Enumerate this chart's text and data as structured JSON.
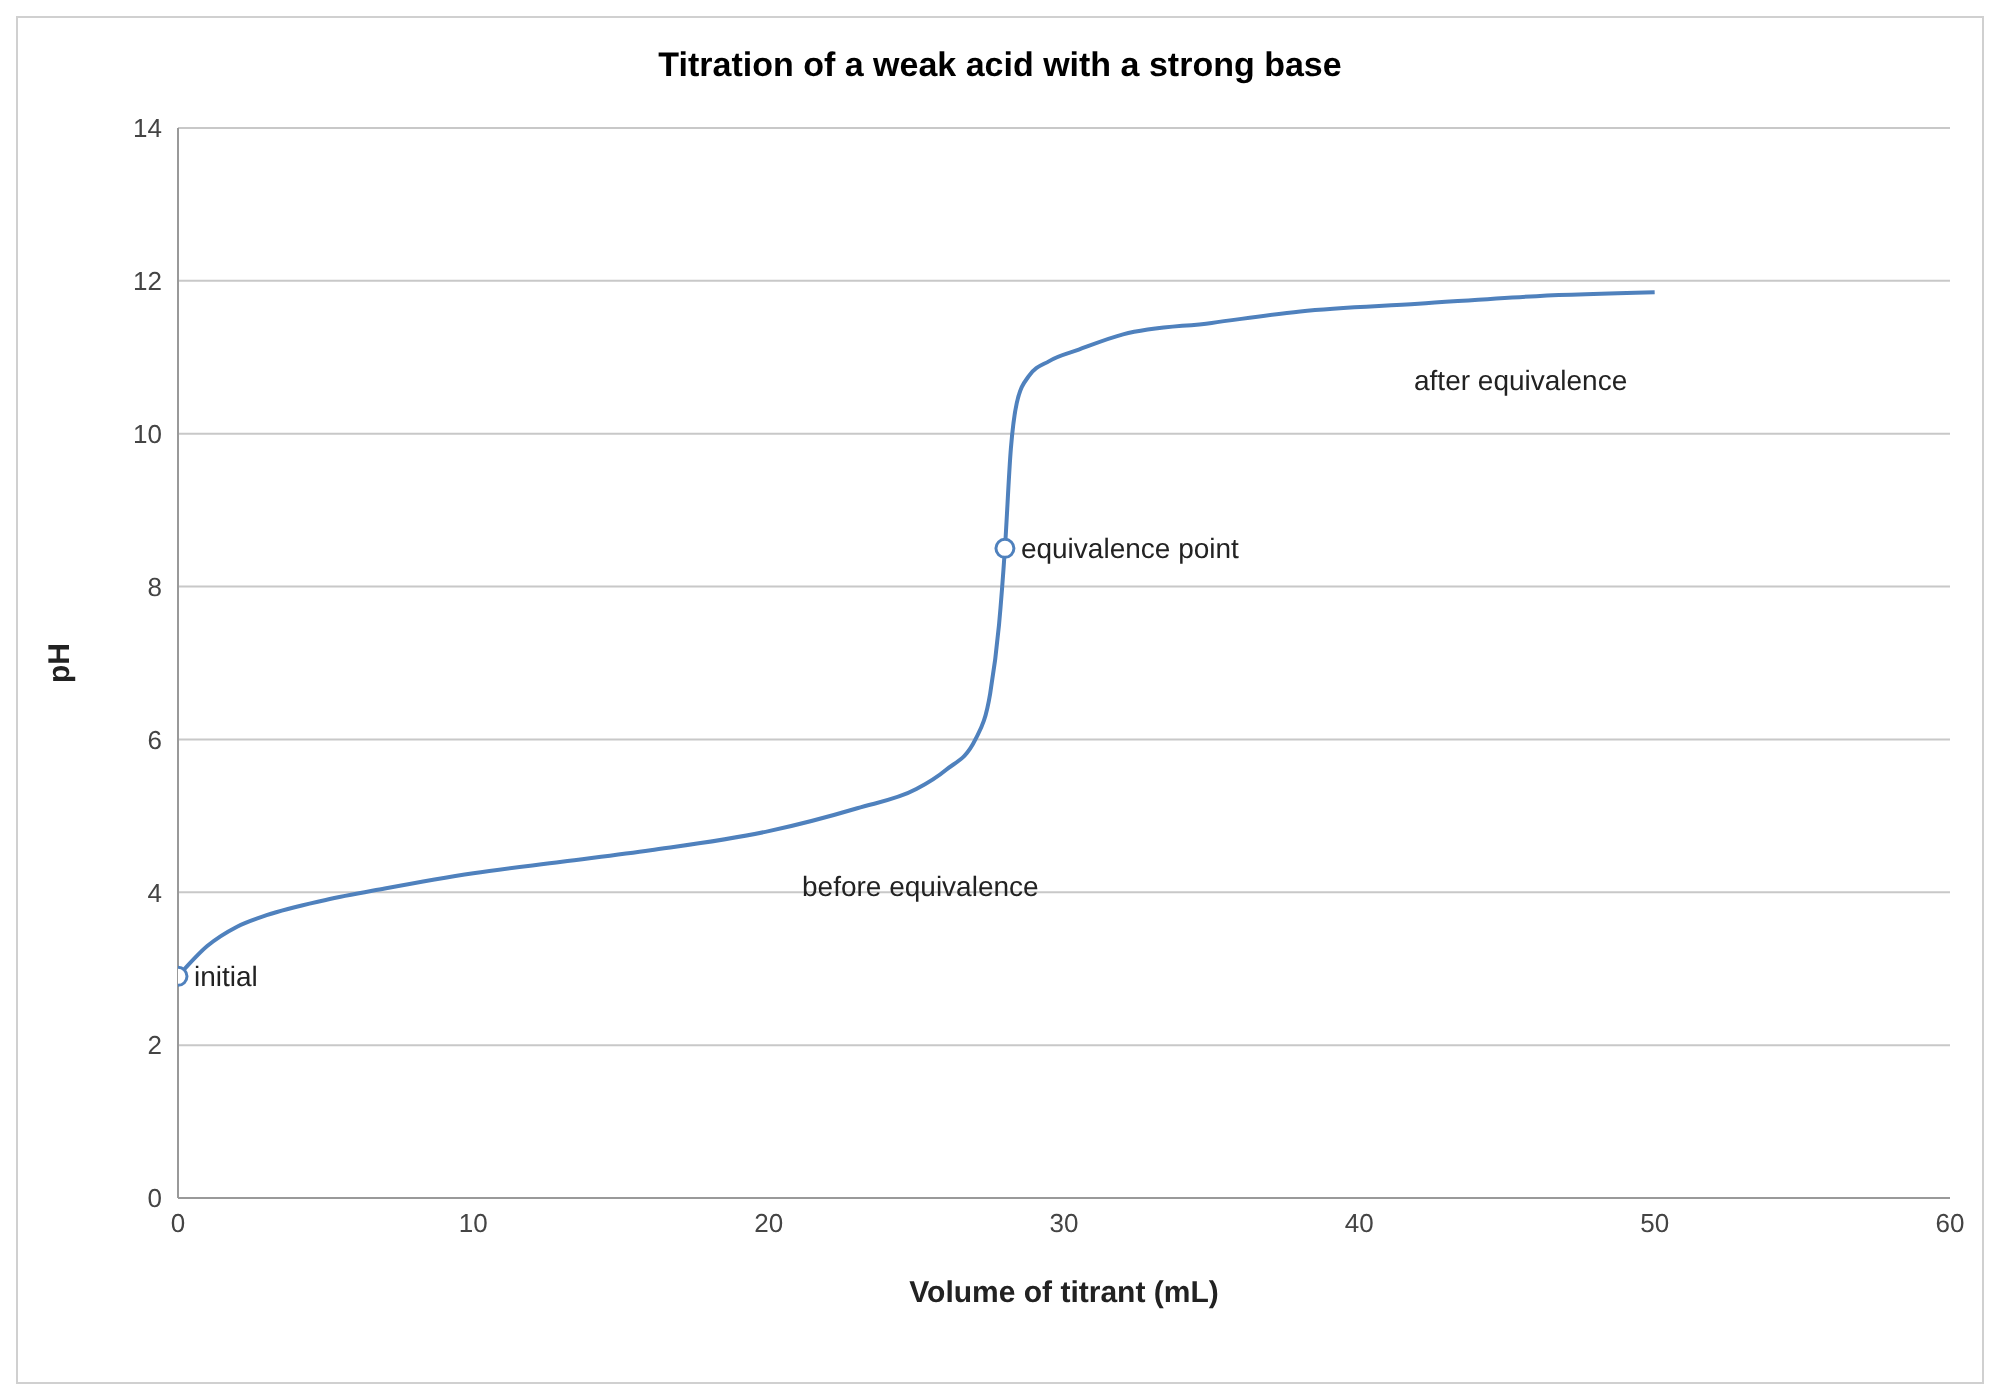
{
  "chart_data": {
    "type": "line",
    "title": "Titration of a weak acid with a strong base",
    "xlabel": "Volume of titrant (mL)",
    "ylabel": "pH",
    "xlim": [
      0,
      60
    ],
    "xticks": [
      0,
      10,
      20,
      30,
      40,
      50,
      60
    ],
    "ylim": [
      0,
      14
    ],
    "yticks": [
      0,
      2,
      4,
      6,
      8,
      10,
      12,
      14
    ],
    "grid": "y",
    "series": [
      {
        "color": "#4f81bd",
        "marker": "none",
        "x": [
          0,
          1,
          2,
          3,
          5,
          7,
          10,
          13,
          16,
          20,
          23,
          25,
          26,
          27,
          27.5,
          27.8,
          28,
          28.2,
          28.4,
          28.8,
          29.5,
          30.5,
          32,
          35,
          38,
          42,
          46,
          50
        ],
        "values": [
          2.9,
          3.3,
          3.55,
          3.7,
          3.9,
          4.05,
          4.25,
          4.4,
          4.55,
          4.8,
          5.1,
          5.35,
          5.6,
          6.0,
          6.6,
          7.5,
          8.5,
          9.8,
          10.4,
          10.75,
          10.95,
          11.1,
          11.3,
          11.45,
          11.6,
          11.7,
          11.8,
          11.85
        ]
      },
      {
        "type": "scatter",
        "color": "#4f81bd",
        "marker": "circle",
        "x": [
          0,
          28
        ],
        "values": [
          2.9,
          8.5
        ]
      }
    ],
    "annotations": [
      {
        "text": "initial",
        "x": 0,
        "y": 2.9
      },
      {
        "text": "equivalence point",
        "x": 28,
        "y": 8.5
      },
      "before equivalence",
      "after equivalence"
    ]
  }
}
